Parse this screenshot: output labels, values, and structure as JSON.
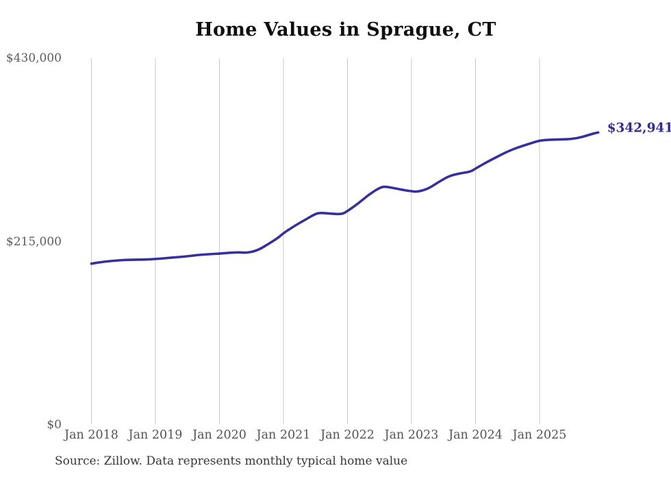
{
  "title": "Home Values in Sprague, CT",
  "source_note": "Source: Zillow. Data represents monthly typical home value",
  "colors": {
    "line": "#3530a0",
    "end_label": "#31299e",
    "grid": "#c9c9c9",
    "tick_text": "#545454",
    "title_text": "#0f0f0f",
    "source_text": "#363636",
    "background": "#ffffff"
  },
  "chart_data": {
    "type": "line",
    "title": "Home Values in Sprague, CT",
    "xlabel": "",
    "ylabel": "",
    "ylim": [
      0,
      430000
    ],
    "grid": "vertical-gridlines-only",
    "legend": "none",
    "yticks": [
      {
        "label": "$430,000",
        "value": 430000
      },
      {
        "label": "$215,000",
        "value": 215000
      },
      {
        "label": "$0",
        "value": 0
      }
    ],
    "xticks": [
      {
        "label": "Jan 2018",
        "month_index": 0
      },
      {
        "label": "Jan 2019",
        "month_index": 12
      },
      {
        "label": "Jan 2020",
        "month_index": 24
      },
      {
        "label": "Jan 2021",
        "month_index": 36
      },
      {
        "label": "Jan 2022",
        "month_index": 48
      },
      {
        "label": "Jan 2023",
        "month_index": 60
      },
      {
        "label": "Jan 2024",
        "month_index": 72
      },
      {
        "label": "Jan 2025",
        "month_index": 84
      }
    ],
    "series": [
      {
        "name": "home_value",
        "last_value": 342941,
        "last_value_label": "$342,941",
        "points": [
          {
            "m": 0,
            "date": "2018-01",
            "value": 189000
          },
          {
            "m": 2,
            "date": "2018-03",
            "value": 191300
          },
          {
            "m": 5,
            "date": "2018-06",
            "value": 192900
          },
          {
            "m": 7,
            "date": "2018-08",
            "value": 193700
          },
          {
            "m": 10,
            "date": "2018-11",
            "value": 193900
          },
          {
            "m": 12,
            "date": "2019-01",
            "value": 194500
          },
          {
            "m": 15,
            "date": "2019-04",
            "value": 196100
          },
          {
            "m": 18,
            "date": "2019-07",
            "value": 197700
          },
          {
            "m": 20,
            "date": "2019-09",
            "value": 199300
          },
          {
            "m": 22,
            "date": "2019-11",
            "value": 200100
          },
          {
            "m": 24,
            "date": "2020-01",
            "value": 200900
          },
          {
            "m": 26,
            "date": "2020-03",
            "value": 202000
          },
          {
            "m": 28,
            "date": "2020-05",
            "value": 202500
          },
          {
            "m": 29,
            "date": "2020-06",
            "value": 201700
          },
          {
            "m": 31,
            "date": "2020-08",
            "value": 204200
          },
          {
            "m": 33,
            "date": "2020-10",
            "value": 211400
          },
          {
            "m": 35,
            "date": "2020-12",
            "value": 219400
          },
          {
            "m": 36,
            "date": "2021-01",
            "value": 225000
          },
          {
            "m": 38,
            "date": "2021-03",
            "value": 233100
          },
          {
            "m": 40,
            "date": "2021-05",
            "value": 240300
          },
          {
            "m": 42,
            "date": "2021-07",
            "value": 247600
          },
          {
            "m": 43,
            "date": "2021-08",
            "value": 248800
          },
          {
            "m": 45,
            "date": "2021-10",
            "value": 247600
          },
          {
            "m": 47,
            "date": "2021-12",
            "value": 247100
          },
          {
            "m": 48,
            "date": "2022-01",
            "value": 250800
          },
          {
            "m": 50,
            "date": "2022-03",
            "value": 259600
          },
          {
            "m": 52,
            "date": "2022-05",
            "value": 270100
          },
          {
            "m": 54,
            "date": "2022-07",
            "value": 278100
          },
          {
            "m": 55,
            "date": "2022-08",
            "value": 279700
          },
          {
            "m": 57,
            "date": "2022-10",
            "value": 277300
          },
          {
            "m": 59,
            "date": "2022-12",
            "value": 274900
          },
          {
            "m": 60,
            "date": "2023-01",
            "value": 274100
          },
          {
            "m": 61,
            "date": "2023-02",
            "value": 273300
          },
          {
            "m": 63,
            "date": "2023-04",
            "value": 276500
          },
          {
            "m": 65,
            "date": "2023-06",
            "value": 284500
          },
          {
            "m": 67,
            "date": "2023-08",
            "value": 291800
          },
          {
            "m": 69,
            "date": "2023-10",
            "value": 295000
          },
          {
            "m": 71,
            "date": "2023-12",
            "value": 296800
          },
          {
            "m": 72,
            "date": "2024-01",
            "value": 300600
          },
          {
            "m": 74,
            "date": "2024-03",
            "value": 307800
          },
          {
            "m": 76,
            "date": "2024-05",
            "value": 314300
          },
          {
            "m": 78,
            "date": "2024-07",
            "value": 320700
          },
          {
            "m": 80,
            "date": "2024-09",
            "value": 325500
          },
          {
            "m": 82,
            "date": "2024-11",
            "value": 329500
          },
          {
            "m": 84,
            "date": "2025-01",
            "value": 333600
          },
          {
            "m": 86,
            "date": "2025-03",
            "value": 334400
          },
          {
            "m": 88,
            "date": "2025-05",
            "value": 334800
          },
          {
            "m": 90,
            "date": "2025-07",
            "value": 335200
          },
          {
            "m": 92,
            "date": "2025-09",
            "value": 337600
          },
          {
            "m": 94,
            "date": "2025-11",
            "value": 341600
          },
          {
            "m": 95,
            "date": "2025-12",
            "value": 342941
          }
        ]
      }
    ]
  }
}
